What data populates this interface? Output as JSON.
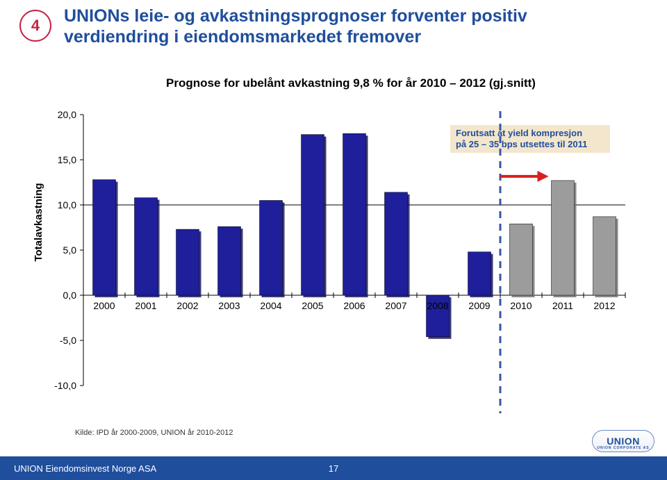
{
  "badge": "4",
  "title_line1": "UNIONs leie- og avkastningsprognoser forventer positiv",
  "title_line2": "verdiendring i eiendomsmarkedet fremover",
  "subtitle": "Prognose for ubelånt avkastning 9,8 % for år 2010 – 2012 (gj.snitt)",
  "source_note": "Kilde: IPD år 2000-2009, UNION år 2010-2012",
  "footer_company": "UNION Eiendomsinvest Norge ASA",
  "footer_page": "17",
  "logo_text": "UNION",
  "logo_sub": "UNION CORPORATE AS",
  "annotation_line1": "Forutsatt at yield kompresjon",
  "annotation_line2": "på 25 – 35 bps utsettes til 2011",
  "ylabel": "Totalavkastning",
  "chart": {
    "type": "bar",
    "categories": [
      "2000",
      "2001",
      "2002",
      "2003",
      "2004",
      "2005",
      "2006",
      "2007",
      "2008",
      "2009",
      "2010",
      "2011",
      "2012"
    ],
    "values": [
      12.8,
      10.8,
      7.3,
      7.6,
      10.5,
      17.8,
      17.9,
      11.4,
      -4.6,
      4.8,
      7.9,
      12.7,
      8.7
    ],
    "bar_colors_hist": "#1f1f9c",
    "bar_colors_fcst": "#9c9c9c",
    "forecast_start_index": 10,
    "ylim": [
      -10,
      20
    ],
    "ytick_step": 5,
    "axis_color": "#000000",
    "grid_color": "#000000",
    "grid_hlines": [
      10
    ],
    "tick_font_size": 14,
    "bar_width": 0.55,
    "background": "#ffffff",
    "dashed_line_x_after_index": 9,
    "dashed_color": "#3a55a5",
    "arrow_color": "#d81e1e",
    "arrow_target_index": 11
  }
}
